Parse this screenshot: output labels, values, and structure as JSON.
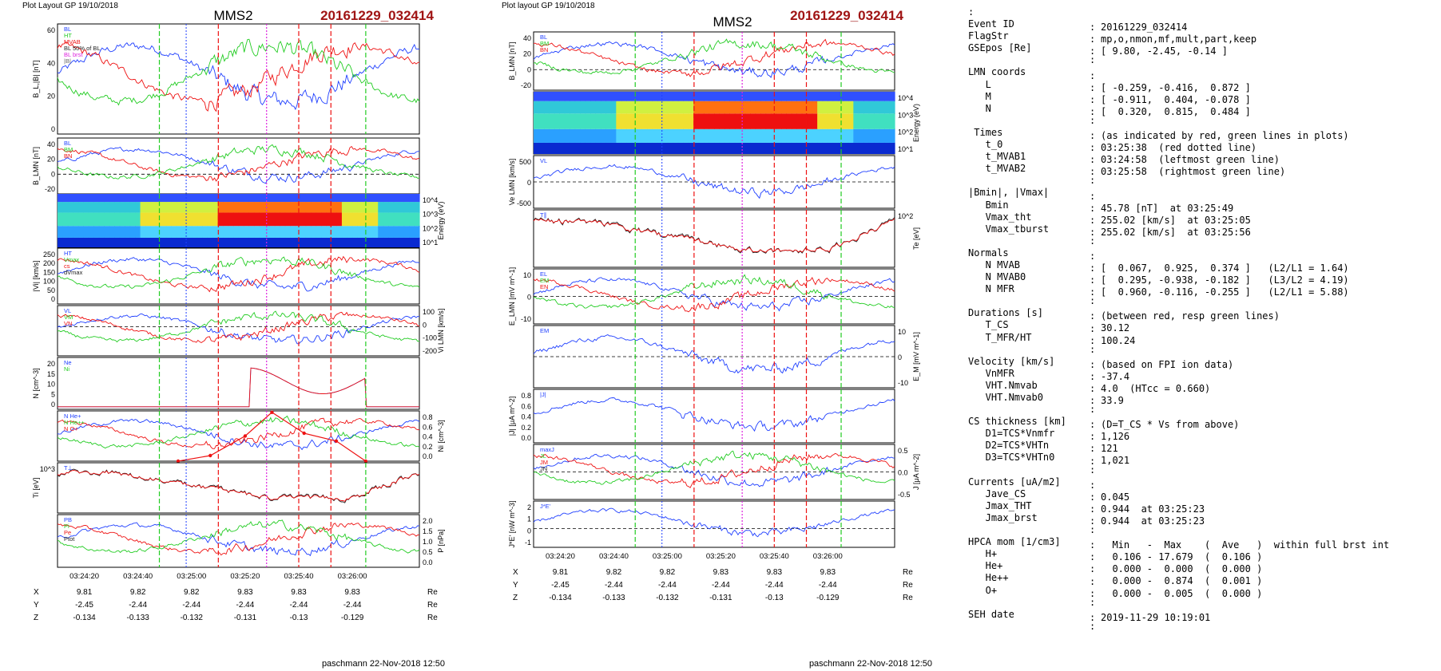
{
  "left_figure": {
    "header": "Plot Layout GP 19/10/2018",
    "spacecraft": "MMS2",
    "event": "20161229_032414",
    "footer": "paschmann 22-Nov-2018 12:50",
    "colors": {
      "blue": "#1f3fff",
      "red": "#ee1111",
      "green": "#22cc22",
      "black": "#222222",
      "magenta": "#dd22dd",
      "grey": "#666666",
      "event": "#a01414"
    }
  },
  "right_figure": {
    "header": "Plot layout GP 19/10/2018",
    "spacecraft": "MMS2",
    "event": "20161229_032414",
    "footer": "paschmann 22-Nov-2018 12:50"
  },
  "chart_data": [
    {
      "type": "line",
      "figure": "left",
      "x_ticks": [
        "03:24:20",
        "03:24:40",
        "03:25:00",
        "03:25:20",
        "03:25:40",
        "03:26:00"
      ],
      "position_table": {
        "labels": [
          "X",
          "Y",
          "Z"
        ],
        "rows": [
          [
            "9.81",
            "9.82",
            "9.82",
            "9.83",
            "9.83",
            "9.83"
          ],
          [
            "-2.45",
            "-2.44",
            "-2.44",
            "-2.44",
            "-2.44",
            "-2.44"
          ],
          [
            "-0.134",
            "-0.133",
            "-0.132",
            "-0.131",
            "-0.13",
            "-0.129"
          ]
        ],
        "unit": "Re"
      },
      "panels": [
        {
          "id": "bl_btot",
          "ylabel": "B_L,|B| [nT]",
          "yticks": [
            "60",
            "40",
            "20",
            "0"
          ],
          "ylim": [
            0,
            65
          ],
          "legend": [
            "BL",
            "HT",
            "MVAB",
            "BL 50% of BL",
            "BL brst",
            "|B|"
          ]
        },
        {
          "id": "b_lmn",
          "ylabel": "B_LMN [nT]",
          "yticks": [
            "40",
            "20",
            "0",
            "-20"
          ],
          "ylim": [
            -30,
            55
          ],
          "legend": [
            "BL",
            "BM",
            "BN"
          ]
        },
        {
          "id": "ion_spec",
          "ylabel": "Energy (eV)",
          "yticks": [
            "10^4",
            "10^3",
            "10^2",
            "10^1"
          ],
          "type": "spectrogram"
        },
        {
          "id": "vi_mag",
          "ylabel": "|Vi| [km/s]",
          "yticks": [
            "250",
            "200",
            "150",
            "100",
            "50",
            "0"
          ],
          "ylim": [
            0,
            260
          ],
          "legend": [
            "HT",
            "Vmax",
            "cs",
            "dVmax"
          ]
        },
        {
          "id": "vi_lmn",
          "ylabel": "Vi LMN [km/s]",
          "yticks": [
            "100",
            "0",
            "-100",
            "-200"
          ],
          "ylim": [
            -220,
            160
          ],
          "legend": [
            "VL",
            "VM",
            "VN"
          ]
        },
        {
          "id": "density",
          "ylabel": "N [cm^-3]",
          "yticks": [
            "20",
            "15",
            "10",
            "5",
            "0"
          ],
          "ylim": [
            0,
            21
          ],
          "legend": [
            "Ne",
            "Ni"
          ]
        },
        {
          "id": "hpca",
          "ylabel": "Ni [cm^-3]",
          "yticks": [
            "0.8",
            "0.6",
            "0.4",
            "0.2",
            "0.0"
          ],
          "ylim": [
            0,
            0.9
          ],
          "legend": [
            "N He+",
            "N He++",
            "N O+"
          ],
          "series": [
            {
              "name": "N He++",
              "x_seconds": [
                45,
                57,
                70,
                80,
                92,
                104,
                115
              ],
              "values": [
                0.0,
                0.1,
                0.45,
                0.874,
                0.5,
                0.36,
                0.0
              ]
            }
          ]
        },
        {
          "id": "temperature",
          "ylabel": "Ti [eV]",
          "yticks": [
            "10^3"
          ],
          "legend": [
            "T⊥"
          ]
        },
        {
          "id": "pressure",
          "ylabel": "P [nPa]",
          "yticks": [
            "2.0",
            "1.5",
            "1.0",
            "0.5",
            "0.0"
          ],
          "ylim": [
            0,
            2.2
          ],
          "legend": [
            "PB",
            "Pi",
            "Pe",
            "Ptot"
          ]
        }
      ]
    },
    {
      "type": "line",
      "figure": "right",
      "x_ticks": [
        "03:24:20",
        "03:24:40",
        "03:25:00",
        "03:25:20",
        "03:25:40",
        "03:26:00"
      ],
      "position_table": {
        "labels": [
          "X",
          "Y",
          "Z"
        ],
        "rows": [
          [
            "9.81",
            "9.82",
            "9.82",
            "9.83",
            "9.83",
            "9.83"
          ],
          [
            "-2.45",
            "-2.44",
            "-2.44",
            "-2.44",
            "-2.44",
            "-2.44"
          ],
          [
            "-0.134",
            "-0.133",
            "-0.132",
            "-0.131",
            "-0.13",
            "-0.129"
          ]
        ],
        "unit": "Re"
      },
      "panels": [
        {
          "id": "b_lmn",
          "ylabel": "B_LMN [nT]",
          "yticks": [
            "40",
            "20",
            "0",
            "-20"
          ],
          "ylim": [
            -30,
            55
          ],
          "legend": [
            "BL",
            "BM",
            "BN"
          ]
        },
        {
          "id": "e_spec",
          "ylabel": "Energy (eV)",
          "yticks": [
            "10^4",
            "10^3",
            "10^2",
            "10^1"
          ],
          "type": "spectrogram"
        },
        {
          "id": "ve_lmn",
          "ylabel": "Ve LMN [km/s]",
          "yticks": [
            "500",
            "0",
            "-500"
          ],
          "ylim": [
            -800,
            800
          ],
          "legend": [
            "VL"
          ]
        },
        {
          "id": "te",
          "ylabel": "Te [eV]",
          "yticks": [
            "10^2"
          ],
          "legend": [
            "T∥"
          ]
        },
        {
          "id": "e_lmn",
          "ylabel": "E_LMN [mV m^-1]",
          "yticks": [
            "10",
            "0",
            "-10"
          ],
          "ylim": [
            -15,
            15
          ],
          "legend": [
            "EL",
            "EM",
            "EN"
          ]
        },
        {
          "id": "em",
          "ylabel": "E_M [mV m^-1]",
          "yticks": [
            "10",
            "0",
            "-10"
          ],
          "ylim": [
            -15,
            15
          ],
          "legend": [
            "EM"
          ]
        },
        {
          "id": "j_mag",
          "ylabel": "|J| [μA m^-2]",
          "yticks": [
            "0.8",
            "0.6",
            "0.4",
            "0.2",
            "0.0"
          ],
          "ylim": [
            0,
            0.9
          ],
          "legend": [
            "|J|"
          ]
        },
        {
          "id": "j_lmn",
          "ylabel": "J [μA m^-2]",
          "yticks": [
            "0.5",
            "0.0",
            "-0.5"
          ],
          "ylim": [
            -0.8,
            0.8
          ],
          "legend": [
            "maxJ",
            "JL",
            "JM",
            "JN"
          ]
        },
        {
          "id": "jdote",
          "ylabel": "J*E' [nW m^-3]",
          "yticks": [
            "2",
            "1",
            "0",
            "-1"
          ],
          "ylim": [
            -1.5,
            2.2
          ],
          "legend": [
            "J*E'"
          ]
        }
      ]
    }
  ],
  "event_times_seconds": {
    "red": [
      60,
      90,
      102
    ],
    "green": [
      38,
      115
    ],
    "magenta": 78,
    "blue": 48
  },
  "info": {
    "lines": [
      {
        "k": ":",
        "v": ""
      },
      {
        "k": "Event ID",
        "v": "20161229_032414"
      },
      {
        "k": "FlagStr",
        "v": "mp,o,nmon,mf,mult,part,keep"
      },
      {
        "k": "GSEpos [Re]",
        "v": "[ 9.80, -2.45, -0.14 ]"
      },
      {
        "k": "",
        "v": ""
      },
      {
        "k": "LMN coords",
        "v": ""
      },
      {
        "k": "   L",
        "v": "[ -0.259, -0.416,  0.872 ]"
      },
      {
        "k": "   M",
        "v": "[ -0.911,  0.404, -0.078 ]"
      },
      {
        "k": "   N",
        "v": "[  0.320,  0.815,  0.484 ]"
      },
      {
        "k": "",
        "v": ""
      },
      {
        "k": " Times",
        "v": "(as indicated by red, green lines in plots)"
      },
      {
        "k": "   t_0",
        "v": "03:25:38  (red dotted line)"
      },
      {
        "k": "   t_MVAB1",
        "v": "03:24:58  (leftmost green line)"
      },
      {
        "k": "   t_MVAB2",
        "v": "03:25:58  (rightmost green line)"
      },
      {
        "k": "",
        "v": ""
      },
      {
        "k": "|Bmin|, |Vmax|",
        "v": ""
      },
      {
        "k": "   Bmin",
        "v": "45.78 [nT]  at 03:25:49"
      },
      {
        "k": "   Vmax_tht",
        "v": "255.02 [km/s]  at 03:25:05"
      },
      {
        "k": "   Vmax_tburst",
        "v": "255.02 [km/s]  at 03:25:56"
      },
      {
        "k": "",
        "v": ""
      },
      {
        "k": "Normals",
        "v": ""
      },
      {
        "k": "   N MVAB",
        "v": "[  0.067,  0.925,  0.374 ]   (L2/L1 = 1.64)"
      },
      {
        "k": "   N MVAB0",
        "v": "[  0.295, -0.938, -0.182 ]   (L3/L2 = 4.19)"
      },
      {
        "k": "   N MFR",
        "v": "[  0.960, -0.116, -0.255 ]   (L2/L1 = 5.88)"
      },
      {
        "k": "",
        "v": ""
      },
      {
        "k": "Durations [s]",
        "v": "(between red, resp green lines)"
      },
      {
        "k": "   T_CS",
        "v": "30.12"
      },
      {
        "k": "   T_MFR/HT",
        "v": "100.24"
      },
      {
        "k": "",
        "v": ""
      },
      {
        "k": "Velocity [km/s]",
        "v": "(based on FPI ion data)"
      },
      {
        "k": "   VnMFR",
        "v": "-37.4"
      },
      {
        "k": "   VHT.Nmvab",
        "v": "4.0  (HTcc = 0.660)"
      },
      {
        "k": "   VHT.Nmvab0",
        "v": "33.9"
      },
      {
        "k": "",
        "v": ""
      },
      {
        "k": "CS thickness [km]",
        "v": "(D=T_CS * Vs from above)"
      },
      {
        "k": "   D1=TCS*Vnmfr",
        "v": "1,126"
      },
      {
        "k": "   D2=TCS*VHTn",
        "v": "121"
      },
      {
        "k": "   D3=TCS*VHTn0",
        "v": "1,021"
      },
      {
        "k": "",
        "v": ""
      },
      {
        "k": "Currents [uA/m2]",
        "v": ""
      },
      {
        "k": "   Jave_CS",
        "v": "0.045"
      },
      {
        "k": "   Jmax_THT",
        "v": "0.944  at 03:25:23"
      },
      {
        "k": "   Jmax_brst",
        "v": "0.944  at 03:25:23"
      },
      {
        "k": "",
        "v": ""
      },
      {
        "k": "HPCA mom [1/cm3]",
        "v": "  Min   -  Max    (  Ave   )  within full brst int"
      },
      {
        "k": "   H+",
        "v": "  0.106 - 17.679  (  0.106 )"
      },
      {
        "k": "   He+",
        "v": "  0.000 -  0.000  (  0.000 )"
      },
      {
        "k": "   He++",
        "v": "  0.000 -  0.874  (  0.001 )"
      },
      {
        "k": "   O+",
        "v": "  0.000 -  0.005  (  0.000 )"
      },
      {
        "k": "",
        "v": ""
      },
      {
        "k": "SEH date",
        "v": "2019-11-29 10:19:01"
      },
      {
        "k": "",
        "v": ""
      }
    ]
  }
}
